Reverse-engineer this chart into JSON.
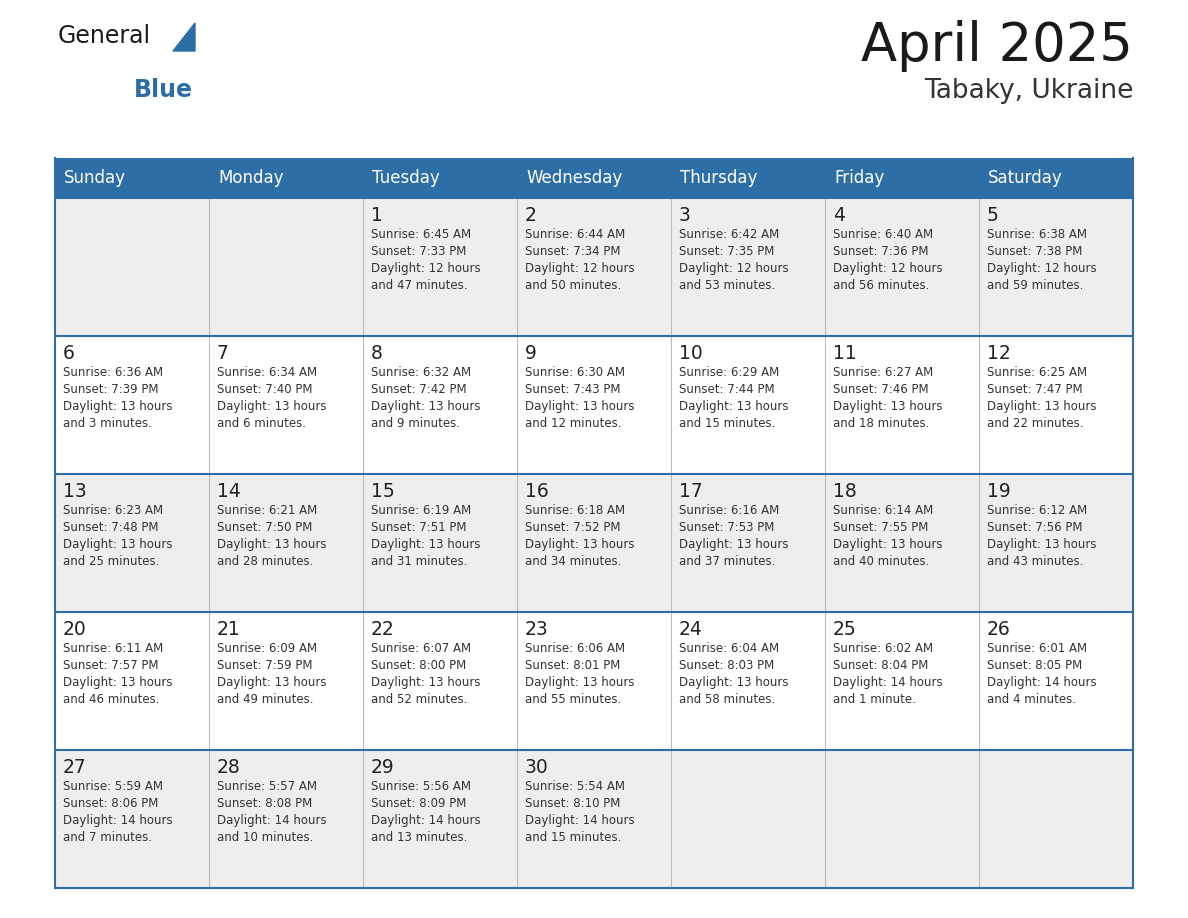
{
  "title": "April 2025",
  "subtitle": "Tabaky, Ukraine",
  "header_bg": "#2E6EA6",
  "header_text_color": "#FFFFFF",
  "cell_bg_row0": "#EEEEEE",
  "cell_bg_row1": "#FFFFFF",
  "cell_bg_row2": "#EEEEEE",
  "cell_bg_row3": "#FFFFFF",
  "cell_bg_row4": "#EEEEEE",
  "day_number_color": "#222222",
  "text_color": "#333333",
  "line_color": "#2E6EA6",
  "days_of_week": [
    "Sunday",
    "Monday",
    "Tuesday",
    "Wednesday",
    "Thursday",
    "Friday",
    "Saturday"
  ],
  "weeks": [
    [
      {
        "day": "",
        "info": ""
      },
      {
        "day": "",
        "info": ""
      },
      {
        "day": "1",
        "info": "Sunrise: 6:45 AM\nSunset: 7:33 PM\nDaylight: 12 hours\nand 47 minutes."
      },
      {
        "day": "2",
        "info": "Sunrise: 6:44 AM\nSunset: 7:34 PM\nDaylight: 12 hours\nand 50 minutes."
      },
      {
        "day": "3",
        "info": "Sunrise: 6:42 AM\nSunset: 7:35 PM\nDaylight: 12 hours\nand 53 minutes."
      },
      {
        "day": "4",
        "info": "Sunrise: 6:40 AM\nSunset: 7:36 PM\nDaylight: 12 hours\nand 56 minutes."
      },
      {
        "day": "5",
        "info": "Sunrise: 6:38 AM\nSunset: 7:38 PM\nDaylight: 12 hours\nand 59 minutes."
      }
    ],
    [
      {
        "day": "6",
        "info": "Sunrise: 6:36 AM\nSunset: 7:39 PM\nDaylight: 13 hours\nand 3 minutes."
      },
      {
        "day": "7",
        "info": "Sunrise: 6:34 AM\nSunset: 7:40 PM\nDaylight: 13 hours\nand 6 minutes."
      },
      {
        "day": "8",
        "info": "Sunrise: 6:32 AM\nSunset: 7:42 PM\nDaylight: 13 hours\nand 9 minutes."
      },
      {
        "day": "9",
        "info": "Sunrise: 6:30 AM\nSunset: 7:43 PM\nDaylight: 13 hours\nand 12 minutes."
      },
      {
        "day": "10",
        "info": "Sunrise: 6:29 AM\nSunset: 7:44 PM\nDaylight: 13 hours\nand 15 minutes."
      },
      {
        "day": "11",
        "info": "Sunrise: 6:27 AM\nSunset: 7:46 PM\nDaylight: 13 hours\nand 18 minutes."
      },
      {
        "day": "12",
        "info": "Sunrise: 6:25 AM\nSunset: 7:47 PM\nDaylight: 13 hours\nand 22 minutes."
      }
    ],
    [
      {
        "day": "13",
        "info": "Sunrise: 6:23 AM\nSunset: 7:48 PM\nDaylight: 13 hours\nand 25 minutes."
      },
      {
        "day": "14",
        "info": "Sunrise: 6:21 AM\nSunset: 7:50 PM\nDaylight: 13 hours\nand 28 minutes."
      },
      {
        "day": "15",
        "info": "Sunrise: 6:19 AM\nSunset: 7:51 PM\nDaylight: 13 hours\nand 31 minutes."
      },
      {
        "day": "16",
        "info": "Sunrise: 6:18 AM\nSunset: 7:52 PM\nDaylight: 13 hours\nand 34 minutes."
      },
      {
        "day": "17",
        "info": "Sunrise: 6:16 AM\nSunset: 7:53 PM\nDaylight: 13 hours\nand 37 minutes."
      },
      {
        "day": "18",
        "info": "Sunrise: 6:14 AM\nSunset: 7:55 PM\nDaylight: 13 hours\nand 40 minutes."
      },
      {
        "day": "19",
        "info": "Sunrise: 6:12 AM\nSunset: 7:56 PM\nDaylight: 13 hours\nand 43 minutes."
      }
    ],
    [
      {
        "day": "20",
        "info": "Sunrise: 6:11 AM\nSunset: 7:57 PM\nDaylight: 13 hours\nand 46 minutes."
      },
      {
        "day": "21",
        "info": "Sunrise: 6:09 AM\nSunset: 7:59 PM\nDaylight: 13 hours\nand 49 minutes."
      },
      {
        "day": "22",
        "info": "Sunrise: 6:07 AM\nSunset: 8:00 PM\nDaylight: 13 hours\nand 52 minutes."
      },
      {
        "day": "23",
        "info": "Sunrise: 6:06 AM\nSunset: 8:01 PM\nDaylight: 13 hours\nand 55 minutes."
      },
      {
        "day": "24",
        "info": "Sunrise: 6:04 AM\nSunset: 8:03 PM\nDaylight: 13 hours\nand 58 minutes."
      },
      {
        "day": "25",
        "info": "Sunrise: 6:02 AM\nSunset: 8:04 PM\nDaylight: 14 hours\nand 1 minute."
      },
      {
        "day": "26",
        "info": "Sunrise: 6:01 AM\nSunset: 8:05 PM\nDaylight: 14 hours\nand 4 minutes."
      }
    ],
    [
      {
        "day": "27",
        "info": "Sunrise: 5:59 AM\nSunset: 8:06 PM\nDaylight: 14 hours\nand 7 minutes."
      },
      {
        "day": "28",
        "info": "Sunrise: 5:57 AM\nSunset: 8:08 PM\nDaylight: 14 hours\nand 10 minutes."
      },
      {
        "day": "29",
        "info": "Sunrise: 5:56 AM\nSunset: 8:09 PM\nDaylight: 14 hours\nand 13 minutes."
      },
      {
        "day": "30",
        "info": "Sunrise: 5:54 AM\nSunset: 8:10 PM\nDaylight: 14 hours\nand 15 minutes."
      },
      {
        "day": "",
        "info": ""
      },
      {
        "day": "",
        "info": ""
      },
      {
        "day": "",
        "info": ""
      }
    ]
  ],
  "cell_bg_colors": [
    "#EEEEEE",
    "#FFFFFF",
    "#EEEEEE",
    "#FFFFFF",
    "#EEEEEE"
  ]
}
